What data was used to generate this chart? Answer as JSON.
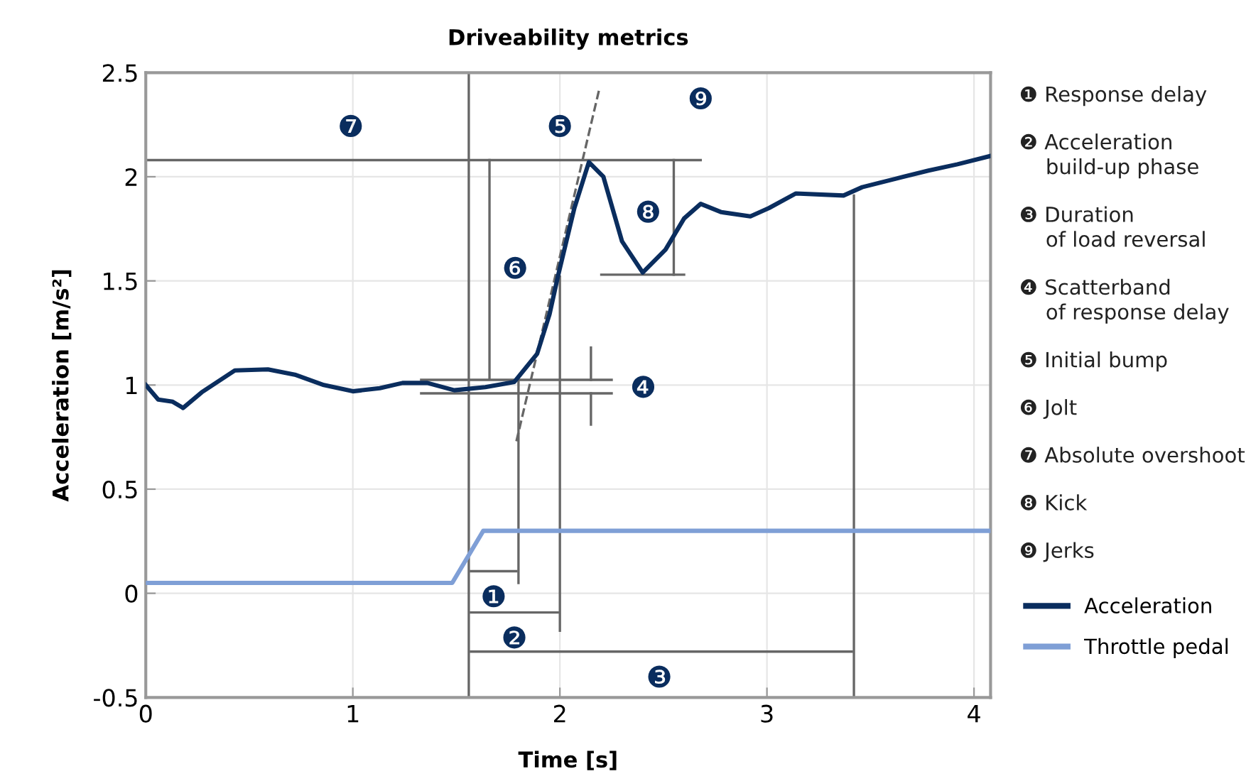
{
  "chart_data": {
    "type": "line",
    "title": "Driveability metrics",
    "xlabel": "Time [s]",
    "ylabel": "Acceleration [m/s²]",
    "xlim": [
      0,
      4.08
    ],
    "ylim": [
      -0.5,
      2.5
    ],
    "xticks": [
      0,
      1,
      2,
      3,
      4
    ],
    "yticks": [
      -0.5,
      0,
      0.5,
      1,
      1.5,
      2,
      2.5
    ],
    "grid": true,
    "legend": "right",
    "series": [
      {
        "name": "Acceleration",
        "color": "#0a2d5e",
        "x": [
          0.0,
          0.06,
          0.13,
          0.18,
          0.27,
          0.43,
          0.59,
          0.72,
          0.86,
          1.0,
          1.13,
          1.24,
          1.36,
          1.49,
          1.64,
          1.78,
          1.89,
          1.95,
          1.99,
          2.07,
          2.14,
          2.21,
          2.3,
          2.4,
          2.51,
          2.6,
          2.68,
          2.78,
          2.92,
          3.01,
          3.14,
          3.37,
          3.46,
          3.62,
          3.78,
          3.92,
          4.08
        ],
        "values": [
          1.0,
          0.93,
          0.92,
          0.89,
          0.965,
          1.07,
          1.075,
          1.05,
          1.0,
          0.97,
          0.985,
          1.01,
          1.01,
          0.975,
          0.99,
          1.015,
          1.15,
          1.34,
          1.52,
          1.85,
          2.07,
          2.0,
          1.69,
          1.54,
          1.65,
          1.8,
          1.87,
          1.83,
          1.81,
          1.85,
          1.92,
          1.91,
          1.95,
          1.99,
          2.03,
          2.06,
          2.1
        ]
      },
      {
        "name": "Throttle pedal",
        "color": "#7f9fd6",
        "x": [
          0,
          1.48,
          1.63,
          4.08
        ],
        "values": [
          0.05,
          0.05,
          0.3,
          0.3
        ]
      },
      {
        "color": "#666666",
        "x": [
          1.79,
          2.19
        ],
        "values": [
          0.73,
          2.42
        ],
        "line_style": "dashed"
      },
      {
        "color": "#666666",
        "x": [
          0,
          2.68
        ],
        "values": [
          2.08,
          2.08
        ]
      },
      {
        "color": "#666666",
        "x": [
          1.56,
          1.56
        ],
        "values": [
          -0.5,
          2.5
        ]
      },
      {
        "color": "#666666",
        "x": [
          3.42,
          3.42
        ],
        "values": [
          -0.5,
          1.91
        ]
      },
      {
        "color": "#666666",
        "x": [
          1.8,
          1.8
        ],
        "values": [
          0.05,
          1.02
        ]
      },
      {
        "color": "#666666",
        "x": [
          2.0,
          2.0
        ],
        "values": [
          -0.18,
          1.52
        ]
      },
      {
        "color": "#666666",
        "x": [
          1.33,
          2.25
        ],
        "values": [
          1.025,
          1.025
        ]
      },
      {
        "color": "#666666",
        "x": [
          1.33,
          2.25
        ],
        "values": [
          0.96,
          0.96
        ]
      },
      {
        "color": "#666666",
        "x": [
          2.2,
          2.6
        ],
        "values": [
          1.53,
          1.53
        ]
      },
      {
        "color": "#666666",
        "x": [
          1.66,
          1.66
        ],
        "values": [
          1.03,
          2.08
        ]
      },
      {
        "color": "#666666",
        "x": [
          2.55,
          2.55
        ],
        "values": [
          1.53,
          2.08
        ]
      },
      {
        "color": "#666666",
        "x": [
          1.57,
          1.79
        ],
        "values": [
          0.106,
          0.106
        ]
      },
      {
        "color": "#666666",
        "x": [
          1.57,
          1.99
        ],
        "values": [
          -0.092,
          -0.092
        ]
      },
      {
        "color": "#666666",
        "x": [
          1.57,
          3.41
        ],
        "values": [
          -0.28,
          -0.28
        ]
      },
      {
        "color": "#666666",
        "x": [
          2.15,
          2.15
        ],
        "values": [
          1.18,
          1.025
        ]
      },
      {
        "color": "#666666",
        "x": [
          2.15,
          2.15
        ],
        "values": [
          0.96,
          0.81
        ]
      }
    ],
    "annotations": [
      {
        "text": "❶",
        "x": 1.68,
        "y": 0.106
      },
      {
        "text": "❷",
        "x": 1.78,
        "y": -0.092
      },
      {
        "text": "❸",
        "x": 2.48,
        "y": -0.28
      },
      {
        "text": "❹",
        "x": 2.25,
        "y": 0.96
      },
      {
        "text": "❺",
        "x": 2.0,
        "y": 2.08
      },
      {
        "text": "❻",
        "x": 1.66,
        "y": 1.55
      },
      {
        "text": "❼",
        "x": 0.99,
        "y": 2.08
      },
      {
        "text": "❽",
        "x": 2.55,
        "y": 1.82
      },
      {
        "text": "❾",
        "x": 2.68,
        "y": 2.08
      },
      "❶ Response delay",
      "❷ Acceleration\n    build-up phase",
      "❸ Duration\n    of load reversal",
      "❹ Scatterband\n    of response delay",
      "❺ Initial bump",
      "❻ Jolt",
      "❼ Absolute overshoot",
      "❽ Kick",
      "❾ Jerks"
    ]
  }
}
